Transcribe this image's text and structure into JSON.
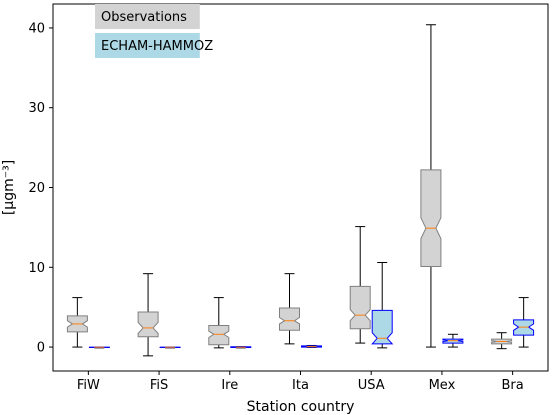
{
  "chart_data": {
    "type": "boxplot",
    "title": "",
    "xlabel": "Station country",
    "ylabel": "[µgm⁻³]",
    "ylim": [
      -3,
      43
    ],
    "yticks": [
      0,
      10,
      20,
      30,
      40
    ],
    "categories": [
      "FiW",
      "FiS",
      "Ire",
      "Ita",
      "USA",
      "Mex",
      "Bra"
    ],
    "grid": false,
    "legend_position": "top-left",
    "notched": true,
    "series": [
      {
        "name": "Observations",
        "fill": "#d3d3d3",
        "edge": "#808080",
        "boxes": [
          {
            "whislo": 0.0,
            "q1": 1.9,
            "med": 2.9,
            "q3": 3.9,
            "whishi": 6.2,
            "notch": [
              2.5,
              3.3
            ]
          },
          {
            "whislo": -1.1,
            "q1": 1.3,
            "med": 2.4,
            "q3": 4.4,
            "whishi": 9.2,
            "notch": [
              1.7,
              3.1
            ]
          },
          {
            "whislo": -0.1,
            "q1": 0.3,
            "med": 1.6,
            "q3": 2.7,
            "whishi": 6.2,
            "notch": [
              1.2,
              2.0
            ]
          },
          {
            "whislo": 0.4,
            "q1": 2.1,
            "med": 3.3,
            "q3": 4.9,
            "whishi": 9.2,
            "notch": [
              2.9,
              3.7
            ]
          },
          {
            "whislo": 0.5,
            "q1": 2.3,
            "med": 4.0,
            "q3": 7.6,
            "whishi": 15.1,
            "notch": [
              3.3,
              4.7
            ]
          },
          {
            "whislo": 0.0,
            "q1": 10.1,
            "med": 14.9,
            "q3": 22.2,
            "whishi": 40.4,
            "notch": [
              13.6,
              16.2
            ]
          },
          {
            "whislo": -0.2,
            "q1": 0.4,
            "med": 0.7,
            "q3": 1.0,
            "whishi": 1.8,
            "notch": [
              0.6,
              0.8
            ]
          }
        ]
      },
      {
        "name": "ECHAM-HAMMOZ",
        "fill": "#add8e6",
        "edge": "#0000ff",
        "boxes": [
          {
            "whislo": -0.1,
            "q1": -0.05,
            "med": -0.02,
            "q3": 0.0,
            "whishi": 0.0,
            "notch": [
              -0.03,
              -0.01
            ]
          },
          {
            "whislo": -0.1,
            "q1": -0.05,
            "med": -0.02,
            "q3": 0.0,
            "whishi": 0.0,
            "notch": [
              -0.03,
              -0.01
            ]
          },
          {
            "whislo": -0.1,
            "q1": -0.05,
            "med": -0.02,
            "q3": 0.05,
            "whishi": 0.05,
            "notch": [
              -0.03,
              -0.01
            ]
          },
          {
            "whislo": -0.05,
            "q1": 0.0,
            "med": 0.05,
            "q3": 0.15,
            "whishi": 0.2,
            "notch": [
              0.03,
              0.08
            ]
          },
          {
            "whislo": -0.1,
            "q1": 0.4,
            "med": 1.1,
            "q3": 4.6,
            "whishi": 10.6,
            "notch": [
              0.4,
              1.8
            ]
          },
          {
            "whislo": 0.0,
            "q1": 0.5,
            "med": 0.8,
            "q3": 1.0,
            "whishi": 1.6,
            "notch": [
              0.7,
              0.9
            ]
          },
          {
            "whislo": 0.0,
            "q1": 1.5,
            "med": 2.5,
            "q3": 3.4,
            "whishi": 6.2,
            "notch": [
              2.1,
              2.9
            ]
          }
        ]
      }
    ],
    "median_color": "#ff7f0e"
  }
}
